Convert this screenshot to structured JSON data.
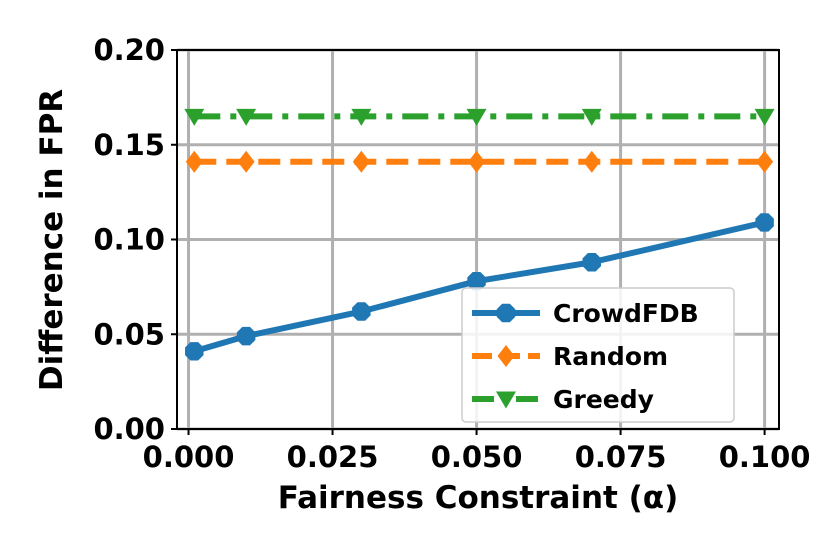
{
  "chart_data": {
    "type": "line",
    "xlabel": "Fairness Constraint (α)",
    "ylabel": "Difference in FPR",
    "xlim": [
      -0.002,
      0.1025
    ],
    "ylim": [
      0.0,
      0.2
    ],
    "xticks": [
      0.0,
      0.025,
      0.05,
      0.075,
      0.1
    ],
    "xtick_labels": [
      "0.000",
      "0.025",
      "0.050",
      "0.075",
      "0.100"
    ],
    "yticks": [
      0.0,
      0.05,
      0.1,
      0.15,
      0.2
    ],
    "ytick_labels": [
      "0.00",
      "0.05",
      "0.10",
      "0.15",
      "0.20"
    ],
    "grid": true,
    "legend_position": "lower-right",
    "x": [
      0.001,
      0.01,
      0.03,
      0.05,
      0.07,
      0.1
    ],
    "series": [
      {
        "name": "CrowdFDB",
        "values": [
          0.041,
          0.049,
          0.062,
          0.078,
          0.088,
          0.109
        ],
        "color": "#1f77b4",
        "linestyle": "solid",
        "marker": "octagon"
      },
      {
        "name": "Random",
        "values": [
          0.141,
          0.141,
          0.141,
          0.141,
          0.141,
          0.141
        ],
        "color": "#ff7f0e",
        "linestyle": "dashed",
        "marker": "diamond"
      },
      {
        "name": "Greedy",
        "values": [
          0.165,
          0.165,
          0.165,
          0.165,
          0.165,
          0.165
        ],
        "color": "#2ca02c",
        "linestyle": "dashdot",
        "marker": "triangle-down"
      }
    ]
  }
}
